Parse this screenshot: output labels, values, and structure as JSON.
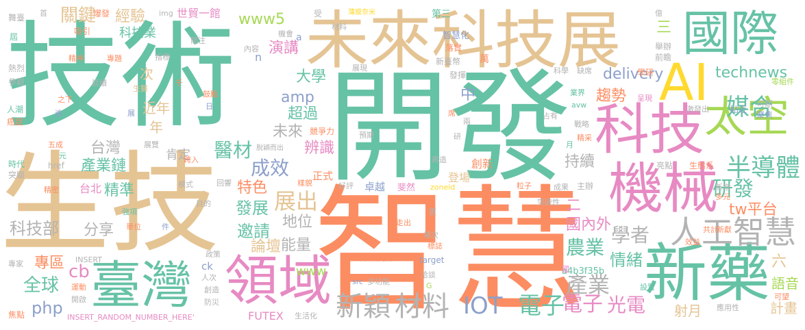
{
  "colors": {
    "teal": "#66c2a5",
    "orange": "#fc8d62",
    "blue": "#8da0cb",
    "pink": "#e78ac3",
    "green": "#a6d854",
    "yellow": "#ffd92f",
    "tan": "#e5c494",
    "gray": "#b3b3b3"
  },
  "words": [
    {
      "text": "技術",
      "color": "teal"
    },
    {
      "text": "開發",
      "color": "teal"
    },
    {
      "text": "生技",
      "color": "tan"
    },
    {
      "text": "智慧",
      "color": "orange"
    },
    {
      "text": "未來科技展",
      "color": "tan"
    },
    {
      "text": "國際",
      "color": "teal"
    },
    {
      "text": "AI",
      "color": "yellow"
    },
    {
      "text": "科技",
      "color": "pink"
    },
    {
      "text": "太空",
      "color": "green"
    },
    {
      "text": "機械",
      "color": "pink"
    },
    {
      "text": "新藥",
      "color": "teal"
    },
    {
      "text": "領域",
      "color": "pink"
    },
    {
      "text": "臺灣",
      "color": "teal"
    },
    {
      "text": "人工智慧",
      "color": "gray"
    },
    {
      "text": "半導體",
      "color": "teal"
    },
    {
      "text": "媒合",
      "color": "teal"
    },
    {
      "text": "研發",
      "color": "teal"
    },
    {
      "text": "tw平台",
      "color": "orange"
    },
    {
      "text": "technews",
      "color": "teal"
    },
    {
      "text": "趨勢",
      "color": "orange"
    },
    {
      "text": "delivery",
      "color": "blue"
    },
    {
      "text": "IOT",
      "color": "blue"
    },
    {
      "text": "電子",
      "color": "teal"
    },
    {
      "text": "新穎",
      "color": "gray"
    },
    {
      "text": "材料",
      "color": "gray"
    },
    {
      "text": "電子",
      "color": "pink"
    },
    {
      "text": "光電",
      "color": "pink"
    },
    {
      "text": "產業",
      "color": "gray"
    },
    {
      "text": "學者",
      "color": "gray"
    },
    {
      "text": "農業",
      "color": "teal"
    },
    {
      "text": "國內外",
      "color": "pink"
    },
    {
      "text": "情緒",
      "color": "teal"
    },
    {
      "text": "a4b3f35b",
      "color": "teal"
    },
    {
      "text": "全球",
      "color": "teal"
    },
    {
      "text": "cb",
      "color": "pink"
    },
    {
      "text": "php",
      "color": "blue"
    },
    {
      "text": "科技部",
      "color": "gray"
    },
    {
      "text": "分享",
      "color": "gray"
    },
    {
      "text": "專區",
      "color": "orange"
    },
    {
      "text": "產業鏈",
      "color": "teal"
    },
    {
      "text": "精準",
      "color": "teal"
    },
    {
      "text": "台北",
      "color": "pink"
    },
    {
      "text": "台灣",
      "color": "gray"
    },
    {
      "text": "成效",
      "color": "blue"
    },
    {
      "text": "醫材",
      "color": "teal"
    },
    {
      "text": "展出",
      "color": "tan"
    },
    {
      "text": "發展",
      "color": "teal"
    },
    {
      "text": "邀請",
      "color": "teal"
    },
    {
      "text": "地位",
      "color": "gray"
    },
    {
      "text": "能量",
      "color": "gray"
    },
    {
      "text": "論壇",
      "color": "tan"
    },
    {
      "text": "特色",
      "color": "orange"
    },
    {
      "text": "辨識",
      "color": "pink"
    },
    {
      "text": "超過",
      "color": "teal"
    },
    {
      "text": "大學",
      "color": "teal"
    },
    {
      "text": "amp",
      "color": "blue"
    },
    {
      "text": "未來",
      "color": "gray"
    },
    {
      "text": "演講",
      "color": "pink"
    },
    {
      "text": "www5",
      "color": "green"
    },
    {
      "text": "經驗",
      "color": "tan"
    },
    {
      "text": "關鍵",
      "color": "tan"
    },
    {
      "text": "科技業",
      "color": "teal"
    },
    {
      "text": "世貿一館",
      "color": "pink"
    },
    {
      "text": "持續",
      "color": "gray"
    },
    {
      "text": "肯定",
      "color": "gray"
    },
    {
      "text": "www",
      "color": "green"
    },
    {
      "text": "FUTEX",
      "color": "pink"
    },
    {
      "text": "語音",
      "color": "green"
    },
    {
      "text": "計畫",
      "color": "tan"
    },
    {
      "text": "射月",
      "color": "tan"
    },
    {
      "text": "六",
      "color": "tan"
    },
    {
      "text": "近年",
      "color": "tan"
    },
    {
      "text": "年",
      "color": "tan"
    },
    {
      "text": "次",
      "color": "tan"
    },
    {
      "text": "中",
      "color": "blue"
    },
    {
      "text": "三",
      "color": "green"
    },
    {
      "text": "二",
      "color": "pink"
    },
    {
      "text": "INSERT_RANDOM_NUMBER_HERE'",
      "color": "pink"
    },
    {
      "text": "href",
      "color": "gray"
    },
    {
      "text": "INSERT",
      "color": "gray"
    },
    {
      "text": "target",
      "color": "blue"
    },
    {
      "text": "卓越",
      "color": "blue"
    },
    {
      "text": "斐然",
      "color": "pink"
    },
    {
      "text": "zoneid",
      "color": "yellow"
    },
    {
      "text": "正式",
      "color": "orange"
    },
    {
      "text": "登場",
      "color": "tan"
    },
    {
      "text": "創新",
      "color": "orange"
    },
    {
      "text": "競爭力",
      "color": "orange"
    },
    {
      "text": "主辦",
      "color": "gray"
    },
    {
      "text": "成果",
      "color": "gray"
    },
    {
      "text": "突破性",
      "color": "gray"
    },
    {
      "text": "生態系",
      "color": "orange"
    },
    {
      "text": "亮點",
      "color": "gray"
    },
    {
      "text": "_blank'",
      "color": "blue"
    },
    {
      "text": "多元",
      "color": "orange"
    },
    {
      "text": "新增",
      "color": "gray"
    },
    {
      "text": "聚焦",
      "color": "blue"
    },
    {
      "text": "可期",
      "color": "gray"
    },
    {
      "text": "貼近",
      "color": "blue"
    },
    {
      "text": "激發出",
      "color": "gray"
    },
    {
      "text": "零組件",
      "color": "green"
    },
    {
      "text": "前瞻",
      "color": "gray"
    },
    {
      "text": "舉辦",
      "color": "gray"
    },
    {
      "text": "億",
      "color": "gray"
    },
    {
      "text": "學研",
      "color": "orange"
    },
    {
      "text": "科學",
      "color": "gray"
    },
    {
      "text": "缺席",
      "color": "gray"
    },
    {
      "text": "業界",
      "color": "teal"
    },
    {
      "text": "呈現",
      "color": "pink"
    },
    {
      "text": "占有",
      "color": "gray"
    },
    {
      "text": "戰略",
      "color": "gray"
    },
    {
      "text": "精采",
      "color": "orange"
    },
    {
      "text": "新臺幣",
      "color": "gray"
    },
    {
      "text": "發揮",
      "color": "gray"
    },
    {
      "text": "萬",
      "color": "orange"
    },
    {
      "text": "落實",
      "color": "orange"
    },
    {
      "text": "智慧化",
      "color": "blue"
    },
    {
      "text": "第三",
      "color": "teal"
    },
    {
      "text": "材料",
      "color": "gray"
    },
    {
      "text": "薄膜奈米",
      "color": "yellow"
    },
    {
      "text": "受",
      "color": "gray"
    },
    {
      "text": "a",
      "color": "blue"
    },
    {
      "text": "n",
      "color": "blue"
    },
    {
      "text": "內容",
      "color": "gray"
    },
    {
      "text": "機會",
      "color": "gray"
    },
    {
      "text": "關注",
      "color": "gray"
    },
    {
      "text": "指標",
      "color": "gray"
    },
    {
      "text": "img",
      "color": "gray"
    },
    {
      "text": "首",
      "color": "gray"
    },
    {
      "text": "爆發",
      "color": "orange"
    },
    {
      "text": "吸引",
      "color": "orange"
    },
    {
      "text": "舞臺",
      "color": "gray"
    },
    {
      "text": "屆",
      "color": "teal"
    },
    {
      "text": "精神",
      "color": "orange"
    },
    {
      "text": "專題",
      "color": "orange"
    },
    {
      "text": "熱烈",
      "color": "gray"
    },
    {
      "text": "參觀",
      "color": "gray"
    },
    {
      "text": "延續",
      "color": "gray"
    },
    {
      "text": "生醫",
      "color": "tan"
    },
    {
      "text": "千",
      "color": "orange"
    },
    {
      "text": "鼓勵",
      "color": "orange"
    },
    {
      "text": "日",
      "color": "blue"
    },
    {
      "text": "人潮",
      "color": "teal"
    },
    {
      "text": "癌症",
      "color": "orange"
    },
    {
      "text": "逾",
      "color": "blue"
    },
    {
      "text": "之下",
      "color": "orange"
    },
    {
      "text": "展",
      "color": "blue"
    },
    {
      "text": "展覽",
      "color": "gray"
    },
    {
      "text": "五成",
      "color": "orange"
    },
    {
      "text": "元",
      "color": "teal"
    },
    {
      "text": "時代",
      "color": "teal"
    },
    {
      "text": "突顯",
      "color": "gray"
    },
    {
      "text": "跨入",
      "color": "orange"
    },
    {
      "text": "脫穎而出",
      "color": "gray"
    },
    {
      "text": "預期",
      "color": "gray"
    },
    {
      "text": "研",
      "color": "gray"
    },
    {
      "text": "再造",
      "color": "gray"
    },
    {
      "text": "抗",
      "color": "teal"
    },
    {
      "text": "月",
      "color": "teal"
    },
    {
      "text": "兩",
      "color": "gray"
    },
    {
      "text": "席",
      "color": "orange"
    },
    {
      "text": "展現",
      "color": "gray"
    },
    {
      "text": "精密",
      "color": "orange"
    },
    {
      "text": "模式",
      "color": "gray"
    },
    {
      "text": "回響",
      "color": "gray"
    },
    {
      "text": "樣貌",
      "color": "orange"
    },
    {
      "text": "好評",
      "color": "gray"
    },
    {
      "text": "粒子",
      "color": "orange"
    },
    {
      "text": "目的",
      "color": "gray"
    },
    {
      "text": "強項",
      "color": "teal"
    },
    {
      "text": "單位",
      "color": "orange"
    },
    {
      "text": "件",
      "color": "blue"
    },
    {
      "text": "政策",
      "color": "gray"
    },
    {
      "text": "ck",
      "color": "blue"
    },
    {
      "text": "人次",
      "color": "gray"
    },
    {
      "text": "創造",
      "color": "gray"
    },
    {
      "text": "防災",
      "color": "gray"
    },
    {
      "text": "專家",
      "color": "gray"
    },
    {
      "text": "運動",
      "color": "orange"
    },
    {
      "text": "開啟",
      "color": "gray"
    },
    {
      "text": "焦點",
      "color": "orange"
    },
    {
      "text": "生活化",
      "color": "gray"
    },
    {
      "text": "src",
      "color": "blue"
    },
    {
      "text": "多功能",
      "color": "gray"
    },
    {
      "text": "中央研究院",
      "color": "orange"
    },
    {
      "text": "標誌",
      "color": "orange"
    },
    {
      "text": "場次",
      "color": "gray"
    },
    {
      "text": "走出",
      "color": "orange"
    },
    {
      "text": "更",
      "color": "gray"
    },
    {
      "text": "洽談",
      "color": "gray"
    },
    {
      "text": "G",
      "color": "green"
    },
    {
      "text": "國",
      "color": "pink"
    },
    {
      "text": "設置",
      "color": "teal"
    },
    {
      "text": "共計",
      "color": "orange"
    },
    {
      "text": "新獻",
      "color": "orange"
    },
    {
      "text": "效益",
      "color": "orange"
    },
    {
      "text": "應用性",
      "color": "gray"
    },
    {
      "text": "可望",
      "color": "orange"
    },
    {
      "text": "avw",
      "color": "teal"
    }
  ]
}
